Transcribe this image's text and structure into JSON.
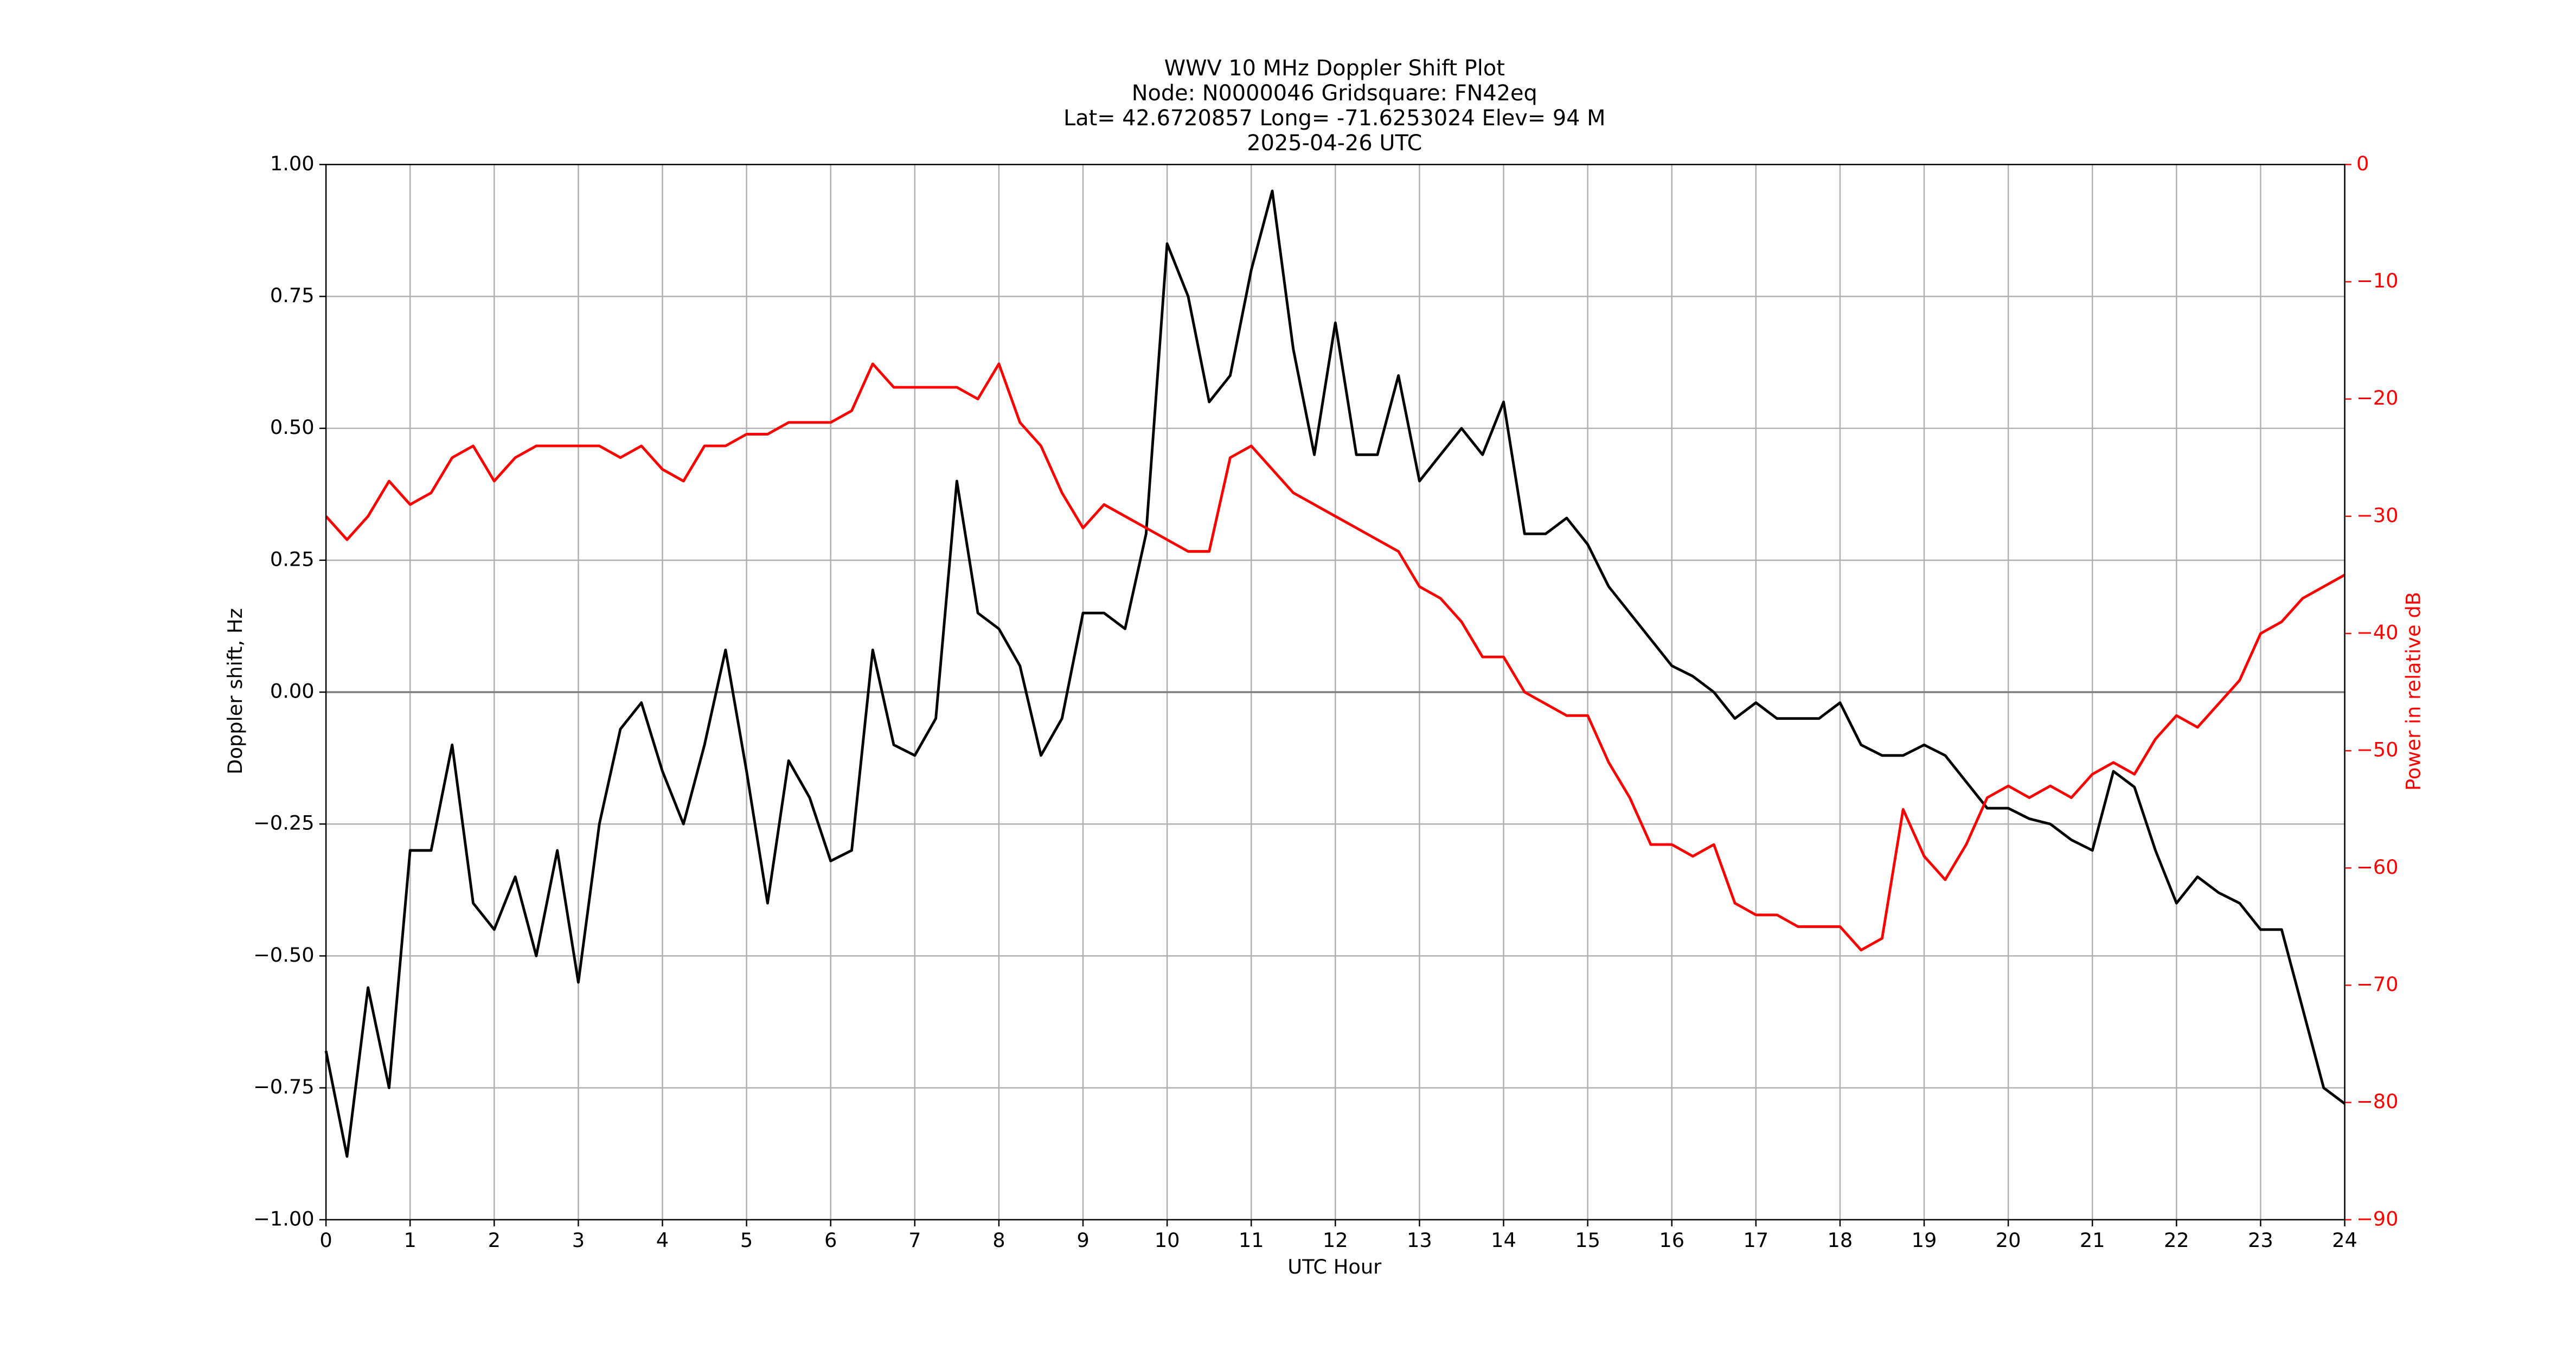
{
  "chart_data": {
    "type": "line",
    "title": "WWV 10 MHz Doppler Shift Plot",
    "subtitle": [
      "Node:  N0000046     Gridsquare:  FN42eq",
      "Lat= 42.6720857    Long= -71.6253024    Elev= 94 M",
      "2025-04-26  UTC"
    ],
    "xlabel": "UTC Hour",
    "ylabel": "Doppler shift, Hz",
    "y2label": "Power in relative dB",
    "grid": true,
    "xlim": [
      0,
      24
    ],
    "xticks": [
      0,
      1,
      2,
      3,
      4,
      5,
      6,
      7,
      8,
      9,
      10,
      11,
      12,
      13,
      14,
      15,
      16,
      17,
      18,
      19,
      20,
      21,
      22,
      23,
      24
    ],
    "ylim": [
      -1,
      1
    ],
    "yticks": [
      {
        "value": -1,
        "label": "−1.00"
      },
      {
        "value": -0.75,
        "label": "−0.75"
      },
      {
        "value": -0.5,
        "label": "−0.50"
      },
      {
        "value": -0.25,
        "label": "−0.25"
      },
      {
        "value": 0,
        "label": "0.00"
      },
      {
        "value": 0.25,
        "label": "0.25"
      },
      {
        "value": 0.5,
        "label": "0.50"
      },
      {
        "value": 0.75,
        "label": "0.75"
      },
      {
        "value": 1,
        "label": "1.00"
      }
    ],
    "y2lim": [
      -90,
      0
    ],
    "y2ticks": [
      {
        "value": -90,
        "label": "−90"
      },
      {
        "value": -80,
        "label": "−80"
      },
      {
        "value": -70,
        "label": "−70"
      },
      {
        "value": -60,
        "label": "−60"
      },
      {
        "value": -50,
        "label": "−50"
      },
      {
        "value": -40,
        "label": "−40"
      },
      {
        "value": -30,
        "label": "−30"
      },
      {
        "value": -20,
        "label": "−20"
      },
      {
        "value": -10,
        "label": "−10"
      },
      0
    ],
    "x": [
      0,
      0.25,
      0.5,
      0.75,
      1,
      1.25,
      1.5,
      1.75,
      2,
      2.25,
      2.5,
      2.75,
      3,
      3.25,
      3.5,
      3.75,
      4,
      4.25,
      4.5,
      4.75,
      5,
      5.25,
      5.5,
      5.75,
      6,
      6.25,
      6.5,
      6.75,
      7,
      7.25,
      7.5,
      7.75,
      8,
      8.25,
      8.5,
      8.75,
      9,
      9.25,
      9.5,
      9.75,
      10,
      10.25,
      10.5,
      10.75,
      11,
      11.25,
      11.5,
      11.75,
      12,
      12.25,
      12.5,
      12.75,
      13,
      13.25,
      13.5,
      13.75,
      14,
      14.25,
      14.5,
      14.75,
      15,
      15.25,
      15.5,
      15.75,
      16,
      16.25,
      16.5,
      16.75,
      17,
      17.25,
      17.5,
      17.75,
      18,
      18.25,
      18.5,
      18.75,
      19,
      19.25,
      19.5,
      19.75,
      20,
      20.25,
      20.5,
      20.75,
      21,
      21.25,
      21.5,
      21.75,
      22,
      22.25,
      22.5,
      22.75,
      23,
      23.25,
      23.5,
      23.75,
      24
    ],
    "series": [
      {
        "color": "#000000",
        "values": [
          -0.68,
          -0.88,
          -0.56,
          -0.75,
          -0.3,
          -0.3,
          -0.1,
          -0.4,
          -0.45,
          -0.35,
          -0.5,
          -0.3,
          -0.55,
          -0.25,
          -0.07,
          -0.02,
          -0.15,
          -0.25,
          -0.1,
          0.08,
          -0.15,
          -0.4,
          -0.13,
          -0.2,
          -0.32,
          -0.3,
          0.08,
          -0.1,
          -0.12,
          -0.05,
          0.4,
          0.15,
          0.12,
          0.05,
          -0.12,
          -0.05,
          0.15,
          0.15,
          0.12,
          0.3,
          0.85,
          0.75,
          0.55,
          0.6,
          0.8,
          0.95,
          0.65,
          0.45,
          0.7,
          0.45,
          0.45,
          0.6,
          0.4,
          0.45,
          0.5,
          0.45,
          0.55,
          0.3,
          0.3,
          0.33,
          0.28,
          0.2,
          0.15,
          0.1,
          0.05,
          0.03,
          0.0,
          -0.05,
          -0.02,
          -0.05,
          -0.05,
          -0.05,
          -0.02,
          -0.1,
          -0.12,
          -0.12,
          -0.1,
          -0.12,
          -0.17,
          -0.22,
          -0.22,
          -0.24,
          -0.25,
          -0.28,
          -0.3,
          -0.15,
          -0.18,
          -0.3,
          -0.4,
          -0.35,
          -0.38,
          -0.4,
          -0.45,
          -0.45,
          -0.6,
          -0.75,
          -0.78
        ]
      },
      {
        "color": "#ff0000",
        "axis": "y2",
        "values": [
          -30,
          -32,
          -30,
          -27,
          -29,
          -28,
          -25,
          -24,
          -27,
          -25,
          -24,
          -24,
          -24,
          -24,
          -25,
          -24,
          -26,
          -27,
          -24,
          -24,
          -23,
          -23,
          -22,
          -22,
          -22,
          -21,
          -17,
          -19,
          -19,
          -19,
          -19,
          -20,
          -17,
          -22,
          -24,
          -28,
          -31,
          -29,
          -30,
          -31,
          -32,
          -33,
          -33,
          -25,
          -24,
          -26,
          -28,
          -29,
          -30,
          -31,
          -32,
          -33,
          -36,
          -37,
          -39,
          -42,
          -42,
          -45,
          -46,
          -47,
          -47,
          -51,
          -54,
          -58,
          -58,
          -59,
          -58,
          -63,
          -64,
          -64,
          -65,
          -65,
          -65,
          -67,
          -66,
          -55,
          -59,
          -61,
          -58,
          -54,
          -53,
          -54,
          -53,
          -54,
          -52,
          -51,
          -52,
          -49,
          -47,
          -48,
          -46,
          -44,
          -40,
          -39,
          -37,
          -36,
          -35
        ]
      }
    ]
  }
}
